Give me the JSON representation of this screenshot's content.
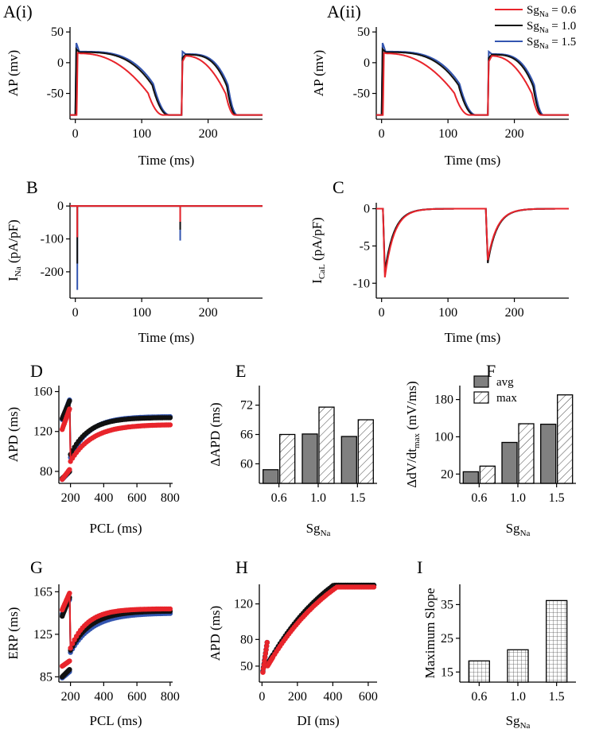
{
  "figure": {
    "colors": {
      "sg06": "#e8242b",
      "sg10": "#111111",
      "sg15": "#3355b0",
      "bar_avg": "#808080",
      "bar_max": "#ffffff"
    },
    "legend": {
      "entries": [
        {
          "base": "Sg",
          "sub": "Na",
          "tail": " = 0.6",
          "color_key": "sg06"
        },
        {
          "base": "Sg",
          "sub": "Na",
          "tail": " = 1.0",
          "color_key": "sg10"
        },
        {
          "base": "Sg",
          "sub": "Na",
          "tail": " = 1.5",
          "color_key": "sg15"
        }
      ]
    }
  },
  "chart_data": [
    {
      "id": "Ai",
      "panel_label": "A(i)",
      "type": "line",
      "xlabel": "Time (ms)",
      "ylabel": "AP (mv)",
      "xticks": [
        0,
        100,
        200
      ],
      "yticks": [
        50,
        0,
        -50
      ],
      "xlim": [
        -8,
        282
      ],
      "ylim": [
        -92,
        58
      ],
      "series": [
        {
          "name": "SgNa = 1.5",
          "color_key": "sg15",
          "params": {
            "t1": 0,
            "t2": 160,
            "peak": 32,
            "plateau": 18,
            "apd1": 142,
            "apd2": 84,
            "shape": 0.75
          }
        },
        {
          "name": "SgNa = 1.0",
          "color_key": "sg10",
          "params": {
            "t1": 0,
            "t2": 160,
            "peak": 22,
            "plateau": 17,
            "apd1": 140,
            "apd2": 82,
            "shape": 0.8
          }
        },
        {
          "name": "SgNa = 0.6",
          "color_key": "sg06",
          "params": {
            "t1": 2,
            "t2": 160,
            "peak": 16,
            "plateau": 15,
            "apd1": 130,
            "apd2": 80,
            "shape": 1.5
          }
        }
      ]
    },
    {
      "id": "Aii",
      "panel_label": "A(ii)",
      "type": "line",
      "xlabel": "Time (ms)",
      "ylabel": "AP (mv)",
      "xticks": [
        0,
        100,
        200
      ],
      "yticks": [
        50,
        0,
        -50
      ],
      "xlim": [
        -8,
        282
      ],
      "ylim": [
        -92,
        58
      ],
      "series": [
        {
          "name": "SgNa = 1.5",
          "color_key": "sg15",
          "params": {
            "t1": 0,
            "t2": 160,
            "peak": 32,
            "plateau": 18,
            "apd1": 142,
            "apd2": 84,
            "shape": 0.75
          }
        },
        {
          "name": "SgNa = 1.0",
          "color_key": "sg10",
          "params": {
            "t1": 0,
            "t2": 160,
            "peak": 22,
            "plateau": 17,
            "apd1": 140,
            "apd2": 82,
            "shape": 0.8
          }
        },
        {
          "name": "SgNa = 0.6",
          "color_key": "sg06",
          "params": {
            "t1": 2,
            "t2": 160,
            "peak": 16,
            "plateau": 15,
            "apd1": 130,
            "apd2": 80,
            "shape": 1.5
          }
        }
      ]
    },
    {
      "id": "B",
      "panel_label": "B",
      "type": "line",
      "xlabel": "Time (ms)",
      "ylabel_base": "I",
      "ylabel_sub": "Na",
      "ylabel_tail": " (pA/pF)",
      "xticks": [
        0,
        100,
        200
      ],
      "yticks": [
        0,
        -100,
        -200
      ],
      "xlim": [
        -8,
        282
      ],
      "ylim": [
        -280,
        10
      ],
      "series": [
        {
          "name": "SgNa = 1.5",
          "color_key": "sg15",
          "spikes": [
            {
              "t": 3,
              "peak": -255
            },
            {
              "t": 158,
              "peak": -105
            }
          ]
        },
        {
          "name": "SgNa = 1.0",
          "color_key": "sg10",
          "spikes": [
            {
              "t": 3,
              "peak": -175
            },
            {
              "t": 158,
              "peak": -72
            }
          ]
        },
        {
          "name": "SgNa = 0.6",
          "color_key": "sg06",
          "spikes": [
            {
              "t": 3,
              "peak": -95
            },
            {
              "t": 158,
              "peak": -48
            }
          ]
        }
      ]
    },
    {
      "id": "C",
      "panel_label": "C",
      "type": "line",
      "xlabel": "Time (ms)",
      "ylabel_base": "I",
      "ylabel_sub": "CaL",
      "ylabel_tail": " (pA/pF)",
      "xticks": [
        0,
        100,
        200
      ],
      "yticks": [
        0,
        -5,
        -10
      ],
      "xlim": [
        -8,
        282
      ],
      "ylim": [
        -12,
        0.8
      ],
      "series": [
        {
          "name": "SgNa = 1.5",
          "color_key": "sg15",
          "transients": [
            {
              "t": 5,
              "peak": -8.6
            },
            {
              "t": 160,
              "peak": -7.1
            }
          ]
        },
        {
          "name": "SgNa = 1.0",
          "color_key": "sg10",
          "transients": [
            {
              "t": 5,
              "peak": -8.4
            },
            {
              "t": 160,
              "peak": -7.3
            }
          ]
        },
        {
          "name": "SgNa = 0.6",
          "color_key": "sg06",
          "transients": [
            {
              "t": 5,
              "peak": -9.2
            },
            {
              "t": 160,
              "peak": -6.9
            }
          ]
        }
      ]
    },
    {
      "id": "D",
      "panel_label": "D",
      "type": "scatter",
      "xlabel": "PCL (ms)",
      "ylabel": "APD (ms)",
      "xticks": [
        200,
        400,
        600,
        800
      ],
      "yticks": [
        160,
        120,
        80
      ],
      "xlim": [
        130,
        815
      ],
      "ylim": [
        68,
        166
      ],
      "series": [
        {
          "name": "SgNa = 1.5",
          "color_key": "sg15",
          "params": {
            "lower_start": 72,
            "lower_end": 80,
            "upper_start": 132,
            "upper_end": 152,
            "post_start": 94,
            "plateau": 135,
            "tau": 110
          }
        },
        {
          "name": "SgNa = 1.0",
          "color_key": "sg10",
          "params": {
            "lower_start": 73,
            "lower_end": 80,
            "upper_start": 133,
            "upper_end": 151,
            "post_start": 97,
            "plateau": 134,
            "tau": 110
          }
        },
        {
          "name": "SgNa = 0.6",
          "color_key": "sg06",
          "params": {
            "lower_start": 72,
            "lower_end": 82,
            "upper_start": 122,
            "upper_end": 143,
            "post_start": 90,
            "plateau": 127,
            "tau": 130
          }
        }
      ]
    },
    {
      "id": "E",
      "panel_label": "E",
      "type": "bar",
      "xlabel_base": "Sg",
      "xlabel_sub": "Na",
      "ylabel": "ΔAPD (ms)",
      "categories": [
        "0.6",
        "1.0",
        "1.5"
      ],
      "yticks": [
        60,
        66,
        72
      ],
      "ylim": [
        56,
        76
      ],
      "series": [
        {
          "name": "avg",
          "color_key": "bar_avg",
          "values": [
            58.8,
            66.1,
            65.6
          ]
        },
        {
          "name": "max",
          "color_key": "bar_max",
          "pattern": "diag",
          "values": [
            66.0,
            71.6,
            69.0
          ]
        }
      ]
    },
    {
      "id": "F",
      "panel_label": "F",
      "type": "bar",
      "xlabel_base": "Sg",
      "xlabel_sub": "Na",
      "ylabel_base": "ΔdV/dt",
      "ylabel_sub": "max",
      "ylabel_tail": " (mV/ms)",
      "categories": [
        "0.6",
        "1.0",
        "1.5"
      ],
      "yticks": [
        20,
        100,
        180
      ],
      "ylim": [
        0,
        210
      ],
      "legend": [
        "avg",
        "max"
      ],
      "series": [
        {
          "name": "avg",
          "color_key": "bar_avg",
          "values": [
            25,
            88,
            127
          ]
        },
        {
          "name": "max",
          "color_key": "bar_max",
          "pattern": "diag",
          "values": [
            37,
            128,
            190
          ]
        }
      ]
    },
    {
      "id": "G",
      "panel_label": "G",
      "type": "scatter",
      "xlabel": "PCL (ms)",
      "ylabel": "ERP (ms)",
      "xticks": [
        200,
        400,
        600,
        800
      ],
      "yticks": [
        165,
        125,
        85
      ],
      "xlim": [
        130,
        815
      ],
      "ylim": [
        80,
        172
      ],
      "series": [
        {
          "name": "SgNa = 1.5",
          "color_key": "sg15",
          "params": {
            "lower_start": 84,
            "lower_end": 90,
            "upper_start": 144,
            "upper_end": 158,
            "post_start": 108,
            "plateau": 145,
            "tau": 130
          }
        },
        {
          "name": "SgNa = 1.0",
          "color_key": "sg10",
          "params": {
            "lower_start": 85,
            "lower_end": 92,
            "upper_start": 142,
            "upper_end": 160,
            "post_start": 110,
            "plateau": 147,
            "tau": 120
          }
        },
        {
          "name": "SgNa = 0.6",
          "color_key": "sg06",
          "params": {
            "lower_start": 95,
            "lower_end": 100,
            "upper_start": 148,
            "upper_end": 164,
            "post_start": 112,
            "plateau": 149,
            "tau": 100
          }
        }
      ]
    },
    {
      "id": "H",
      "panel_label": "H",
      "type": "scatter",
      "xlabel": "DI (ms)",
      "ylabel": "APD (ms)",
      "xticks": [
        0,
        200,
        400,
        600
      ],
      "yticks": [
        120,
        80,
        50
      ],
      "xlim": [
        -15,
        650
      ],
      "ylim": [
        32,
        142
      ],
      "series": [
        {
          "name": "SgNa = 1.5",
          "color_key": "sg15",
          "params": {
            "min": 38,
            "max": 141,
            "tau": 430
          }
        },
        {
          "name": "SgNa = 1.0",
          "color_key": "sg10",
          "params": {
            "min": 37,
            "max": 141,
            "tau": 420
          }
        },
        {
          "name": "SgNa = 0.6",
          "color_key": "sg06",
          "params": {
            "min": 36,
            "max": 139,
            "tau": 440
          }
        }
      ]
    },
    {
      "id": "I",
      "panel_label": "I",
      "type": "bar",
      "xlabel_base": "Sg",
      "xlabel_sub": "Na",
      "ylabel": "Maximum Slope",
      "categories": [
        "0.6",
        "1.0",
        "1.5"
      ],
      "yticks": [
        15,
        25,
        35
      ],
      "ylim": [
        12,
        41
      ],
      "series": [
        {
          "name": "Maximum Slope",
          "color_key": "bar_max",
          "pattern": "grid",
          "values": [
            18.3,
            21.6,
            36.2
          ]
        }
      ]
    }
  ]
}
